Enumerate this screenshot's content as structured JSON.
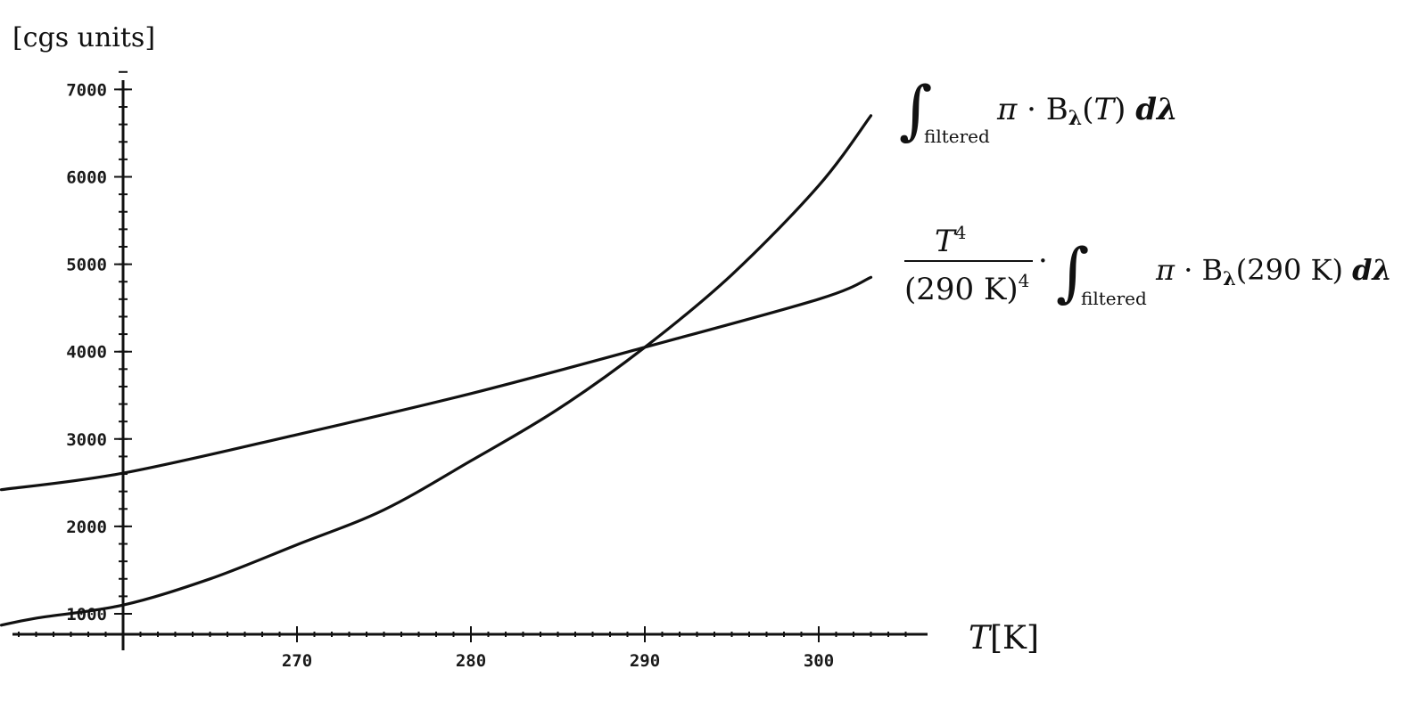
{
  "chart_data": {
    "type": "line",
    "ylabel": "[cgs units]",
    "xlabel": "T[K]",
    "xlim": [
      258,
      306
    ],
    "ylim": [
      850,
      7200
    ],
    "xticks": [
      270,
      280,
      290,
      300
    ],
    "yticks": [
      1000,
      2000,
      3000,
      4000,
      5000,
      6000,
      7000
    ],
    "series": [
      {
        "name": "∫filtered π · Bλ(T) dλ",
        "x": [
          253,
          255,
          260,
          265,
          270,
          275,
          280,
          285,
          290,
          295,
          300,
          303
        ],
        "values": [
          870,
          950,
          1100,
          1400,
          1790,
          2190,
          2750,
          3340,
          4050,
          4880,
          5900,
          6700
        ]
      },
      {
        "name": "T⁴ / (290 K)⁴ · ∫filtered π · Bλ(290 K) dλ",
        "x": [
          253,
          260,
          270,
          280,
          290,
          300,
          303
        ],
        "values": [
          2420,
          2610,
          3050,
          3520,
          4050,
          4600,
          4850
        ]
      }
    ]
  },
  "annotations": {
    "curve1": {
      "integral_sub": "filtered",
      "expr": "π · B",
      "sub_lambda": "λ",
      "arg": "(T)",
      "d": "dλ"
    },
    "curve2": {
      "num": "T",
      "num_sup": "4",
      "den": "(290 K)",
      "den_sup": "4",
      "dot": "·",
      "integral_sub": "filtered",
      "expr": "π · B",
      "sub_lambda": "λ",
      "arg": "(290 K)",
      "d": "dλ"
    }
  }
}
